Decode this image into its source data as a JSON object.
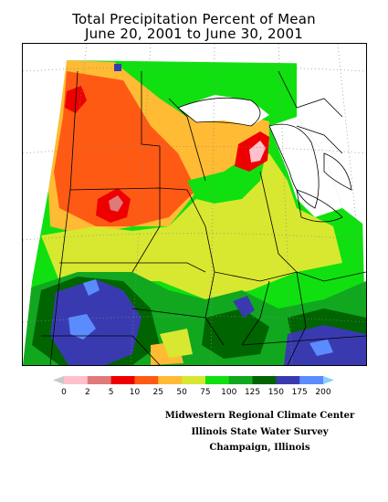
{
  "title_line1": "Total Precipitation Percent of Mean",
  "title_line2": "June 20, 2001 to June 30, 2001",
  "legend": {
    "labels": [
      "0",
      "2",
      "5",
      "10",
      "25",
      "50",
      "75",
      "100",
      "125",
      "150",
      "175",
      "200"
    ],
    "colors": [
      "#c8c8c8",
      "#ffc0cb",
      "#e07a7a",
      "#ee0000",
      "#ff5a14",
      "#ffbb33",
      "#d8e830",
      "#10e010",
      "#11a81f",
      "#006400",
      "#3a3ab0",
      "#5a8cff",
      "#88d0ff"
    ]
  },
  "credits": {
    "line1": "Midwestern Regional Climate Center",
    "line2": "Illinois State Water Survey",
    "line3": "Champaign, Illinois"
  },
  "palette": {
    "brown_red": "#ee0000",
    "orange_red": "#ff5a14",
    "orange": "#ffbb33",
    "yellow_green": "#d8e830",
    "bright_green": "#10e010",
    "mid_green": "#11a81f",
    "dark_green": "#006400",
    "dark_blue": "#3a3ab0",
    "light_blue": "#5a8cff",
    "pink": "#ffc0cb",
    "rose": "#e07a7a"
  }
}
